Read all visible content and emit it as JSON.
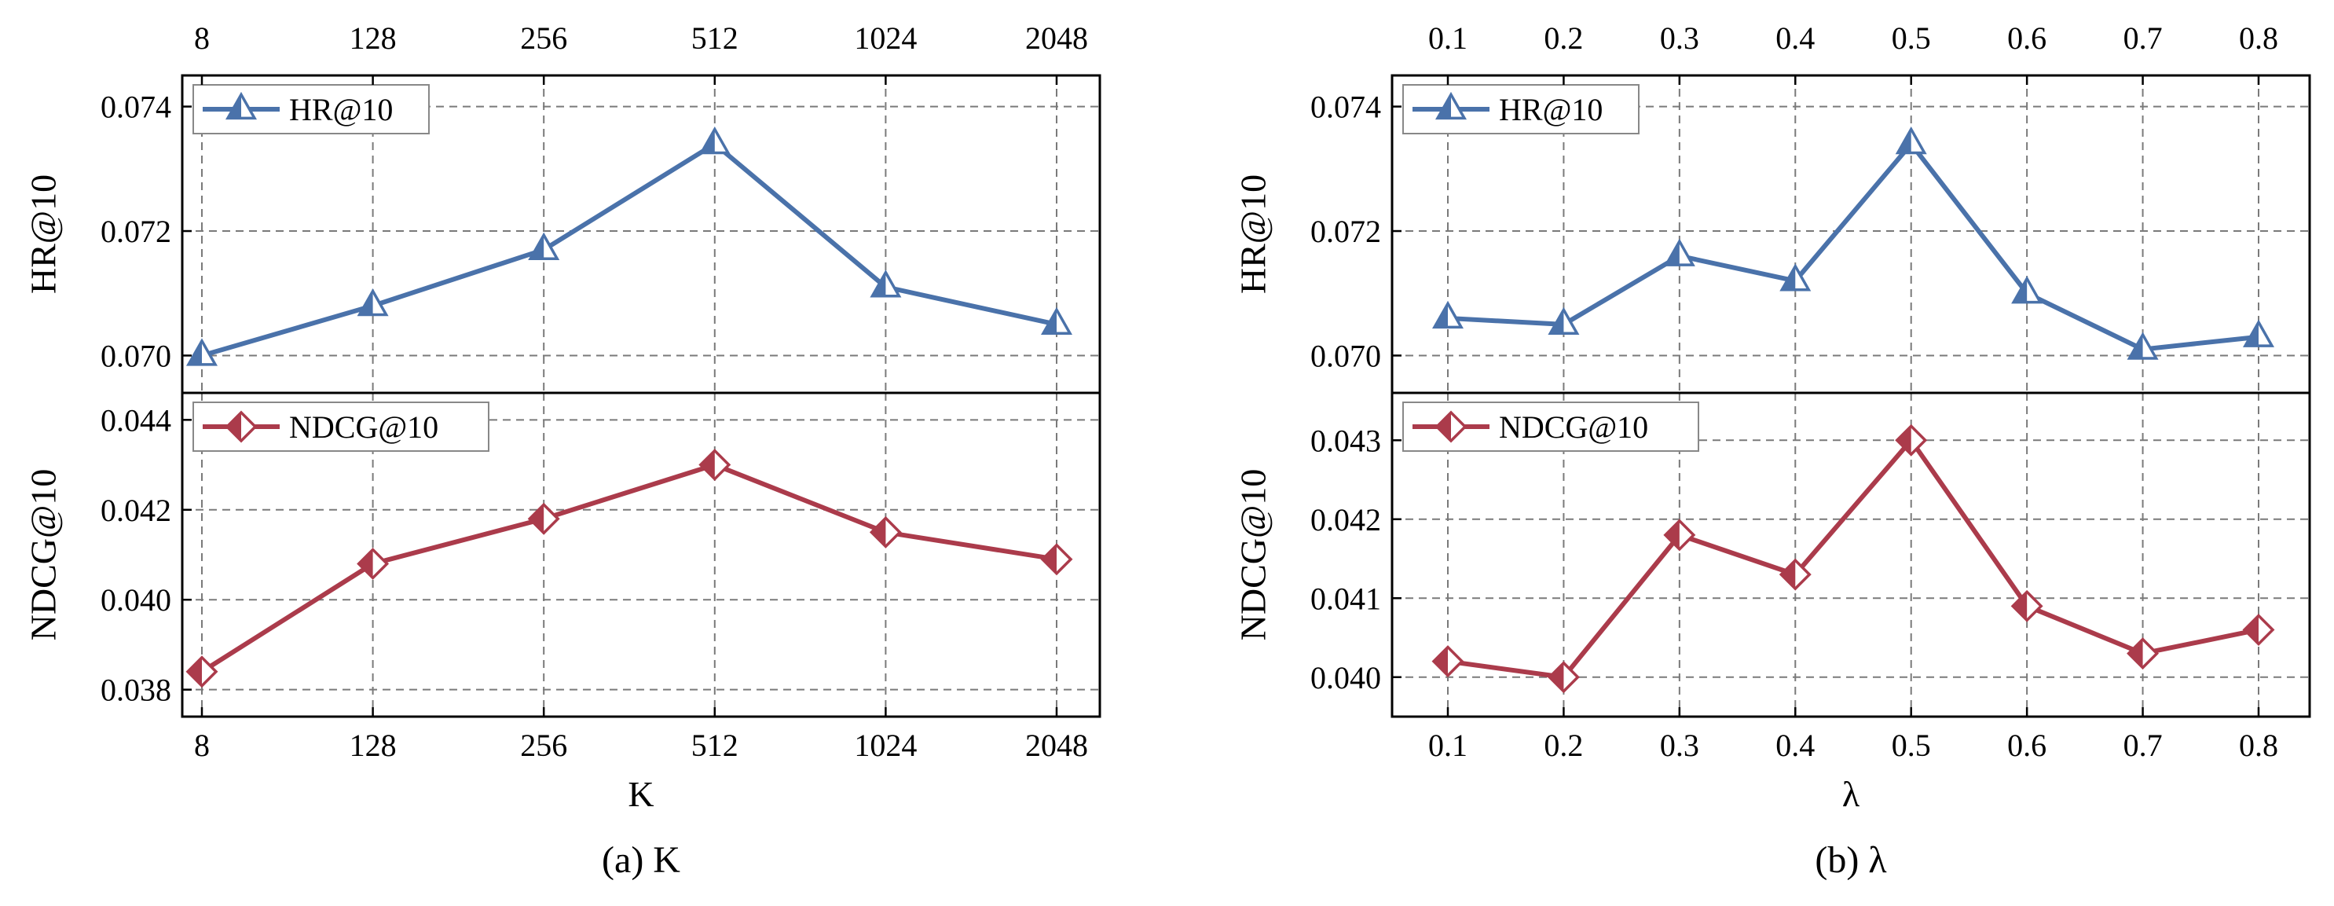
{
  "chart_data": [
    {
      "panel": "a",
      "caption": "(a) K",
      "xlabel": "K",
      "type": "line",
      "categories": [
        "8",
        "128",
        "256",
        "512",
        "1024",
        "2048"
      ],
      "top": {
        "ylabel": "HR@10",
        "ylim": [
          0.0694,
          0.0745
        ],
        "yticks": [
          "0.070",
          "0.072",
          "0.074"
        ],
        "yticks_values": [
          0.07,
          0.072,
          0.074
        ],
        "series": [
          {
            "name": "HR@10",
            "values": [
              0.07,
              0.0708,
              0.0717,
              0.0734,
              0.0711,
              0.0705
            ],
            "color": "#4a72aa",
            "marker": "triangle"
          }
        ],
        "legend": "top-left"
      },
      "bottom": {
        "ylabel": "NDCG@10",
        "ylim": [
          0.0374,
          0.0446
        ],
        "yticks": [
          "0.038",
          "0.040",
          "0.042",
          "0.044"
        ],
        "yticks_values": [
          0.038,
          0.04,
          0.042,
          0.044
        ],
        "series": [
          {
            "name": "NDCG@10",
            "values": [
              0.0384,
              0.0408,
              0.0418,
              0.043,
              0.0415,
              0.0409
            ],
            "color": "#ab3b4b",
            "marker": "diamond"
          }
        ],
        "legend": "top-left"
      },
      "grid": true
    },
    {
      "panel": "b",
      "caption": "(b) λ",
      "xlabel": "λ",
      "type": "line",
      "categories": [
        "0.1",
        "0.2",
        "0.3",
        "0.4",
        "0.5",
        "0.6",
        "0.7",
        "0.8"
      ],
      "top": {
        "ylabel": "HR@10",
        "ylim": [
          0.0694,
          0.0745
        ],
        "yticks": [
          "0.070",
          "0.072",
          "0.074"
        ],
        "yticks_values": [
          0.07,
          0.072,
          0.074
        ],
        "series": [
          {
            "name": "HR@10",
            "values": [
              0.0706,
              0.0705,
              0.0716,
              0.0712,
              0.0734,
              0.071,
              0.0701,
              0.0703
            ],
            "color": "#4a72aa",
            "marker": "triangle"
          }
        ],
        "legend": "top-left"
      },
      "bottom": {
        "ylabel": "NDCG@10",
        "ylim": [
          0.0395,
          0.0436
        ],
        "yticks": [
          "0.040",
          "0.041",
          "0.042",
          "0.043"
        ],
        "yticks_values": [
          0.04,
          0.041,
          0.042,
          0.043
        ],
        "series": [
          {
            "name": "NDCG@10",
            "values": [
              0.0402,
              0.04,
              0.0418,
              0.0413,
              0.043,
              0.0409,
              0.0403,
              0.0406
            ],
            "color": "#ab3b4b",
            "marker": "diamond"
          }
        ],
        "legend": "top-left"
      },
      "grid": true
    }
  ]
}
